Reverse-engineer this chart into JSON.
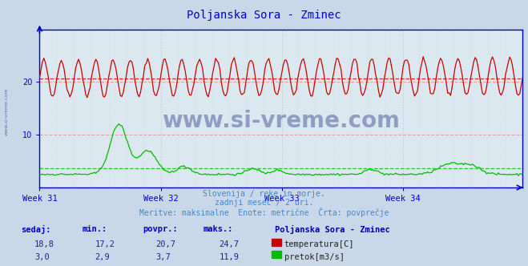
{
  "title": "Poljanska Sora - Zminec",
  "title_color": "#0000cc",
  "bg_color": "#c8d8e8",
  "plot_bg_color": "#dce8f0",
  "grid_v_color": "#c0c8d8",
  "grid_h_dashed_color": "#e8a0a0",
  "xlabel_week_labels": [
    "Week 31",
    "Week 32",
    "Week 33",
    "Week 34"
  ],
  "ylim": [
    0,
    30
  ],
  "yticks": [
    10,
    20
  ],
  "n_points": 336,
  "temp_avg": 20.7,
  "temp_color": "#cc0000",
  "flow_avg": 3.7,
  "flow_color": "#00bb00",
  "watermark": "www.si-vreme.com",
  "subtitle1": "Slovenija / reke in morje.",
  "subtitle2": "zadnji mesec / 2 uri.",
  "subtitle3": "Meritve: maksimalne  Enote: metrične  Črta: povprečje",
  "subtitle_color": "#4488cc",
  "legend_title": "Poljanska Sora - Zminec",
  "legend_title_color": "#0000aa",
  "table_headers": [
    "sedaj:",
    "min.:",
    "povpr.:",
    "maks.:"
  ],
  "table_header_color": "#0000cc",
  "table_values_temp": [
    "18,8",
    "17,2",
    "20,7",
    "24,7"
  ],
  "table_values_flow": [
    "3,0",
    "2,9",
    "3,7",
    "11,9"
  ],
  "table_value_color": "#222288",
  "axis_color": "#0000cc",
  "spine_color": "#0000cc",
  "tick_color": "#0000cc"
}
